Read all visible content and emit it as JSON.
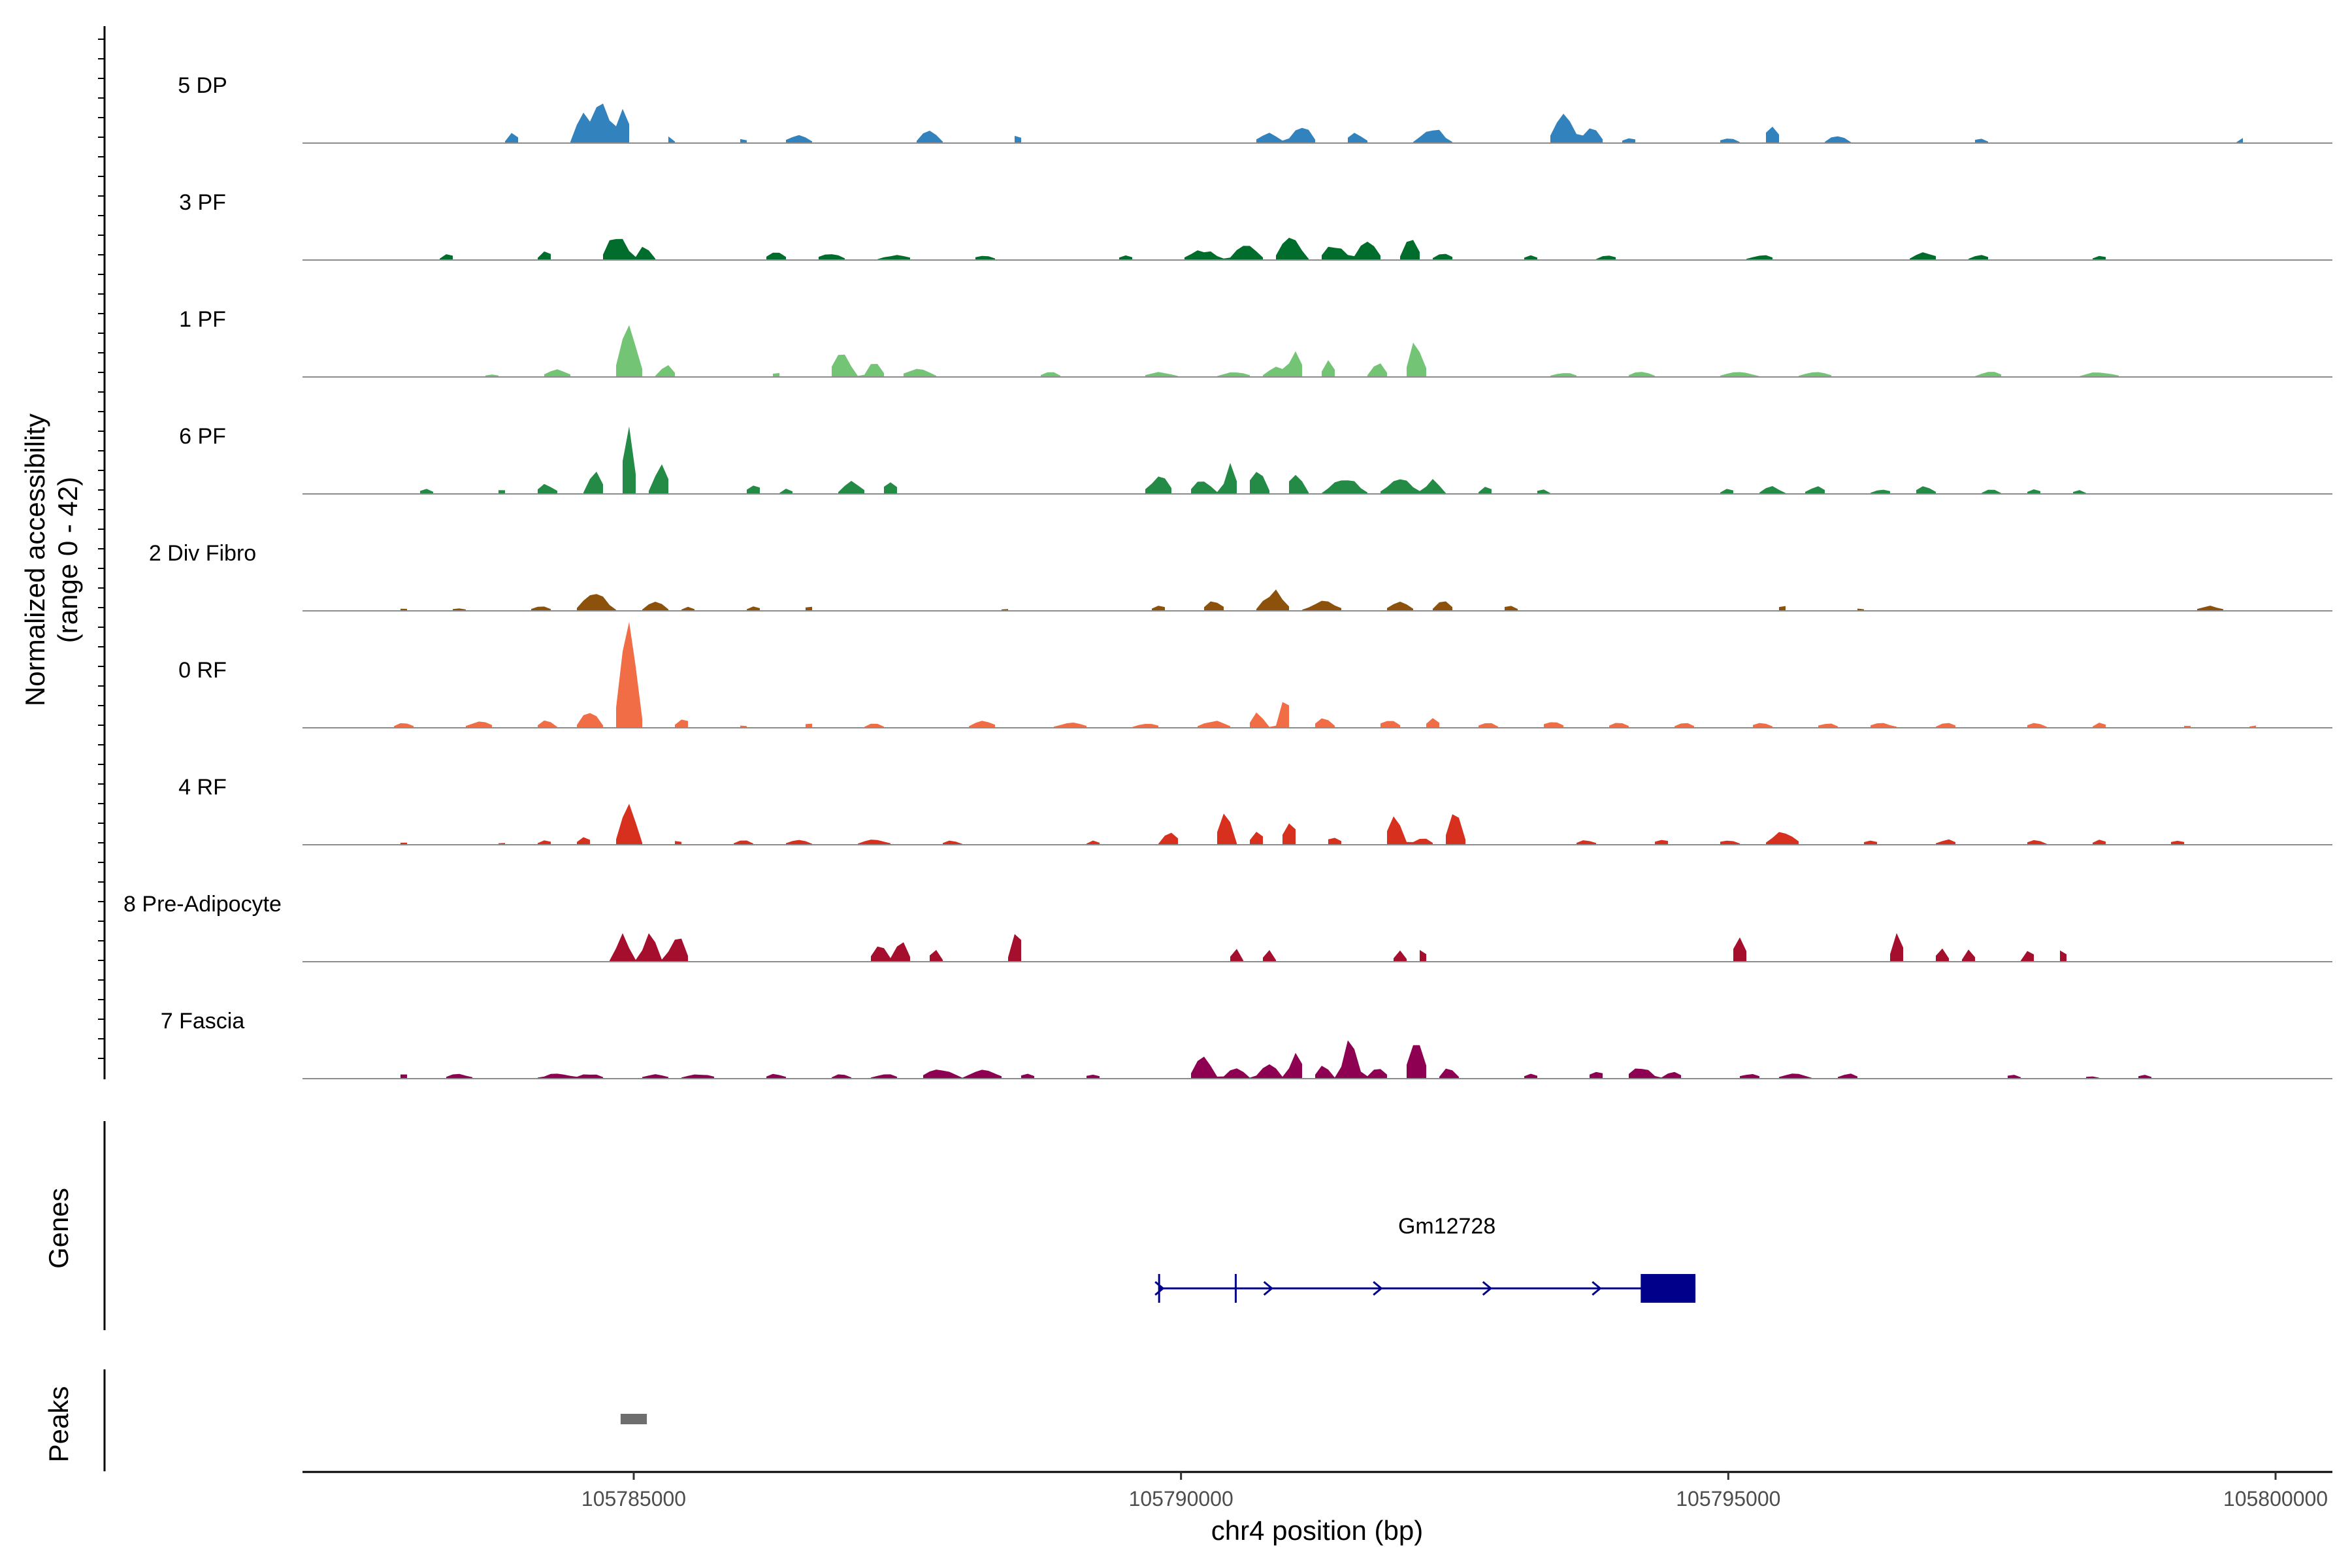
{
  "chart_data": {
    "type": "area",
    "title": "",
    "xlabel": "chr4 position (bp)",
    "ylabel_line1": "Normalized accessibility",
    "ylabel_line2": "(range 0 - 42)",
    "ylim": [
      0,
      42
    ],
    "xlim": [
      105782000,
      105800500
    ],
    "xticks": [
      105785000,
      105790000,
      105795000,
      105800000
    ],
    "xtick_labels": [
      "105785000",
      "105790000",
      "105795000",
      "105800000"
    ],
    "tracks": [
      {
        "name": "5 DP",
        "color": "#3182BD",
        "peaks": [
          [
            105783900,
            4,
            110
          ],
          [
            105784550,
            13,
            150
          ],
          [
            105784700,
            16,
            180
          ],
          [
            105784900,
            14,
            120
          ],
          [
            105785320,
            3,
            80
          ],
          [
            105786000,
            2,
            90
          ],
          [
            105786500,
            3,
            200
          ],
          [
            105787700,
            5,
            160
          ],
          [
            105788500,
            3,
            100
          ],
          [
            105790800,
            4,
            200
          ],
          [
            105791100,
            7,
            180
          ],
          [
            105791600,
            4,
            160
          ],
          [
            105792300,
            6,
            220
          ],
          [
            105793500,
            11,
            200
          ],
          [
            105793750,
            7,
            150
          ],
          [
            105794100,
            2,
            150
          ],
          [
            105795000,
            2,
            150
          ],
          [
            105795400,
            7,
            130
          ],
          [
            105796000,
            3,
            160
          ],
          [
            105797300,
            2,
            120
          ],
          [
            105799700,
            2,
            80
          ]
        ]
      },
      {
        "name": "3 PF",
        "color": "#006D2C",
        "peaks": [
          [
            105783300,
            3,
            100
          ],
          [
            105784200,
            4,
            120
          ],
          [
            105784850,
            10,
            200
          ],
          [
            105785100,
            6,
            120
          ],
          [
            105786300,
            3,
            160
          ],
          [
            105786800,
            3,
            200
          ],
          [
            105787400,
            2,
            250
          ],
          [
            105788200,
            2,
            160
          ],
          [
            105789500,
            2,
            150
          ],
          [
            105790200,
            4,
            250
          ],
          [
            105790600,
            7,
            200
          ],
          [
            105791000,
            9,
            200
          ],
          [
            105791400,
            6,
            200
          ],
          [
            105791700,
            7,
            180
          ],
          [
            105792100,
            10,
            130
          ],
          [
            105792400,
            3,
            150
          ],
          [
            105793200,
            2,
            120
          ],
          [
            105793900,
            2,
            150
          ],
          [
            105795300,
            2,
            200
          ],
          [
            105796800,
            3,
            200
          ],
          [
            105797300,
            2,
            160
          ],
          [
            105798400,
            2,
            120
          ]
        ]
      },
      {
        "name": "1 PF",
        "color": "#74C476",
        "peaks": [
          [
            105783700,
            1,
            150
          ],
          [
            105784300,
            3,
            200
          ],
          [
            105784950,
            22,
            170
          ],
          [
            105785300,
            5,
            130
          ],
          [
            105786300,
            2,
            100
          ],
          [
            105786900,
            9,
            170
          ],
          [
            105787200,
            6,
            130
          ],
          [
            105787600,
            4,
            220
          ],
          [
            105788800,
            2,
            160
          ],
          [
            105789800,
            2,
            240
          ],
          [
            105790500,
            2,
            240
          ],
          [
            105790900,
            4,
            220
          ],
          [
            105791050,
            11,
            120
          ],
          [
            105791350,
            7,
            110
          ],
          [
            105791800,
            6,
            130
          ],
          [
            105792150,
            14,
            140
          ],
          [
            105793500,
            2,
            200
          ],
          [
            105794200,
            2,
            200
          ],
          [
            105795100,
            2,
            260
          ],
          [
            105795800,
            2,
            240
          ],
          [
            105797400,
            2,
            200
          ],
          [
            105798400,
            2,
            260
          ]
        ]
      },
      {
        "name": "6 PF",
        "color": "#238B45",
        "peaks": [
          [
            105783100,
            2,
            120
          ],
          [
            105783800,
            2,
            100
          ],
          [
            105784200,
            4,
            160
          ],
          [
            105784650,
            9,
            130
          ],
          [
            105784950,
            26,
            110
          ],
          [
            105785250,
            12,
            140
          ],
          [
            105786100,
            4,
            130
          ],
          [
            105786400,
            2,
            100
          ],
          [
            105787000,
            5,
            180
          ],
          [
            105787350,
            6,
            120
          ],
          [
            105789800,
            7,
            200
          ],
          [
            105790200,
            6,
            170
          ],
          [
            105790450,
            12,
            110
          ],
          [
            105790700,
            11,
            140
          ],
          [
            105791050,
            8,
            140
          ],
          [
            105791500,
            7,
            250
          ],
          [
            105792000,
            6,
            250
          ],
          [
            105792300,
            6,
            140
          ],
          [
            105792800,
            3,
            120
          ],
          [
            105793300,
            2,
            100
          ],
          [
            105795000,
            2,
            120
          ],
          [
            105795400,
            3,
            160
          ],
          [
            105795800,
            3,
            160
          ],
          [
            105796400,
            2,
            160
          ],
          [
            105796800,
            3,
            160
          ],
          [
            105797400,
            2,
            130
          ],
          [
            105797800,
            2,
            130
          ],
          [
            105798200,
            2,
            100
          ]
        ]
      },
      {
        "name": "2 Div Fibro",
        "color": "#8C510A",
        "peaks": [
          [
            105782900,
            1,
            130
          ],
          [
            105783400,
            1,
            150
          ],
          [
            105784150,
            2,
            150
          ],
          [
            105784650,
            7,
            230
          ],
          [
            105785200,
            4,
            160
          ],
          [
            105785500,
            2,
            100
          ],
          [
            105786100,
            2,
            120
          ],
          [
            105786600,
            2,
            110
          ],
          [
            105788400,
            1,
            110
          ],
          [
            105789800,
            2,
            150
          ],
          [
            105790300,
            4,
            170
          ],
          [
            105790850,
            8,
            200
          ],
          [
            105791300,
            4,
            250
          ],
          [
            105792000,
            4,
            180
          ],
          [
            105792400,
            4,
            140
          ],
          [
            105793000,
            2,
            130
          ],
          [
            105795500,
            2,
            110
          ],
          [
            105796200,
            1,
            110
          ],
          [
            105799400,
            2,
            200
          ]
        ]
      },
      {
        "name": "0 RF",
        "color": "#F16D45",
        "peaks": [
          [
            105782900,
            2,
            150
          ],
          [
            105783600,
            3,
            200
          ],
          [
            105784200,
            3,
            130
          ],
          [
            105784600,
            7,
            160
          ],
          [
            105784950,
            42,
            160
          ],
          [
            105785450,
            4,
            120
          ],
          [
            105786000,
            1,
            120
          ],
          [
            105786600,
            2,
            120
          ],
          [
            105787200,
            2,
            130
          ],
          [
            105788200,
            3,
            200
          ],
          [
            105789000,
            2,
            250
          ],
          [
            105789700,
            2,
            200
          ],
          [
            105790300,
            3,
            220
          ],
          [
            105790700,
            6,
            130
          ],
          [
            105790950,
            14,
            100
          ],
          [
            105791300,
            4,
            150
          ],
          [
            105791900,
            3,
            170
          ],
          [
            105792300,
            4,
            120
          ],
          [
            105792800,
            2,
            150
          ],
          [
            105793400,
            3,
            160
          ],
          [
            105794000,
            2,
            160
          ],
          [
            105794600,
            2,
            160
          ],
          [
            105795300,
            2,
            160
          ],
          [
            105795900,
            2,
            160
          ],
          [
            105796400,
            2,
            200
          ],
          [
            105797000,
            2,
            150
          ],
          [
            105797800,
            2,
            160
          ],
          [
            105798400,
            2,
            120
          ],
          [
            105799200,
            1,
            100
          ],
          [
            105799800,
            1,
            80
          ]
        ]
      },
      {
        "name": "4 RF",
        "color": "#D7301F",
        "peaks": [
          [
            105782900,
            1,
            120
          ],
          [
            105783800,
            1,
            100
          ],
          [
            105784200,
            2,
            130
          ],
          [
            105784550,
            3,
            120
          ],
          [
            105784950,
            17,
            150
          ],
          [
            105785400,
            2,
            100
          ],
          [
            105786000,
            2,
            140
          ],
          [
            105786500,
            2,
            180
          ],
          [
            105787200,
            2,
            230
          ],
          [
            105787900,
            2,
            140
          ],
          [
            105789200,
            2,
            100
          ],
          [
            105789900,
            6,
            130
          ],
          [
            105790400,
            13,
            130
          ],
          [
            105790700,
            5,
            120
          ],
          [
            105791000,
            11,
            120
          ],
          [
            105791400,
            3,
            140
          ],
          [
            105791950,
            11,
            140
          ],
          [
            105792200,
            3,
            150
          ],
          [
            105792500,
            15,
            130
          ],
          [
            105793700,
            2,
            150
          ],
          [
            105794400,
            2,
            150
          ],
          [
            105795000,
            2,
            160
          ],
          [
            105795500,
            5,
            220
          ],
          [
            105796300,
            2,
            150
          ],
          [
            105797000,
            2,
            160
          ],
          [
            105797800,
            2,
            160
          ],
          [
            105798400,
            2,
            130
          ],
          [
            105799100,
            2,
            140
          ]
        ]
      },
      {
        "name": "8 Pre-Adipocyte",
        "color": "#A50F2D",
        "peaks": [
          [
            105784900,
            11,
            140
          ],
          [
            105785150,
            11,
            130
          ],
          [
            105785400,
            11,
            140
          ],
          [
            105787250,
            8,
            140
          ],
          [
            105787450,
            10,
            110
          ],
          [
            105787750,
            5,
            100
          ],
          [
            105788500,
            12,
            110
          ],
          [
            105790500,
            5,
            90
          ],
          [
            105790800,
            5,
            90
          ],
          [
            105792000,
            5,
            90
          ],
          [
            105792200,
            5,
            90
          ],
          [
            105795100,
            11,
            110
          ],
          [
            105796550,
            11,
            110
          ],
          [
            105796950,
            5,
            100
          ],
          [
            105797200,
            5,
            90
          ],
          [
            105797750,
            5,
            100
          ],
          [
            105798050,
            5,
            90
          ]
        ]
      },
      {
        "name": "7 Fascia",
        "color": "#8E0152",
        "peaks": [
          [
            105782900,
            2,
            120
          ],
          [
            105783400,
            2,
            200
          ],
          [
            105784300,
            2,
            250
          ],
          [
            105784600,
            2,
            200
          ],
          [
            105785200,
            2,
            200
          ],
          [
            105785600,
            2,
            250
          ],
          [
            105786300,
            2,
            160
          ],
          [
            105786900,
            2,
            140
          ],
          [
            105787300,
            2,
            200
          ],
          [
            105787800,
            4,
            250
          ],
          [
            105788200,
            4,
            250
          ],
          [
            105788600,
            2,
            150
          ],
          [
            105789200,
            2,
            130
          ],
          [
            105790200,
            9,
            160
          ],
          [
            105790500,
            5,
            160
          ],
          [
            105790800,
            7,
            160
          ],
          [
            105791050,
            11,
            120
          ],
          [
            105791300,
            5,
            130
          ],
          [
            105791550,
            17,
            130
          ],
          [
            105791800,
            5,
            140
          ],
          [
            105792150,
            15,
            150
          ],
          [
            105792450,
            5,
            120
          ],
          [
            105793200,
            2,
            120
          ],
          [
            105793800,
            3,
            140
          ],
          [
            105794200,
            5,
            200
          ],
          [
            105794500,
            3,
            150
          ],
          [
            105795200,
            2,
            200
          ],
          [
            105795600,
            2,
            220
          ],
          [
            105796100,
            2,
            160
          ],
          [
            105797600,
            2,
            120
          ],
          [
            105798300,
            1,
            150
          ],
          [
            105798800,
            2,
            120
          ]
        ]
      }
    ],
    "genes": {
      "label": "Genes",
      "name": "Gm12728",
      "color": "#00008B",
      "start": 105789800,
      "end": 105794700,
      "exons": [
        [
          105789800,
          105789880
        ],
        [
          105790500,
          105790560
        ],
        [
          105794200,
          105794700
        ]
      ],
      "arrows": [
        105790800,
        105791800,
        105792800,
        105793800
      ]
    },
    "peaks_track": {
      "label": "Peaks",
      "color": "#6E6E6E",
      "regions": [
        [
          105784880,
          105785120
        ]
      ]
    }
  }
}
